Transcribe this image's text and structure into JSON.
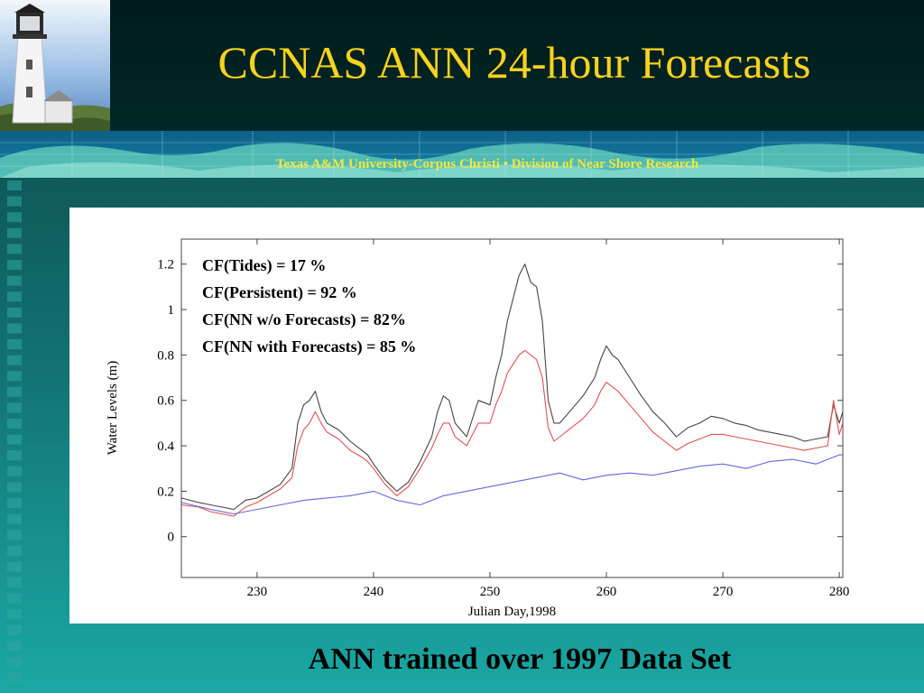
{
  "slide": {
    "title": "CCNAS ANN 24-hour Forecasts",
    "subtitle": "Texas A&M University-Corpus Christi • Division of Near Shore Research",
    "caption": "ANN trained over 1997 Data Set",
    "colors": {
      "title": "#f7d21f",
      "subtitle": "#f2e73a",
      "background_dark": "#0a3434",
      "background_teal": "#1aa7a3"
    }
  },
  "chart_data": {
    "type": "line",
    "title": "",
    "xlabel": "Julian Day,1998",
    "ylabel": "Water Levels (m)",
    "xlim": [
      223.5,
      280.3
    ],
    "ylim": [
      -0.18,
      1.31
    ],
    "xticks": [
      230,
      240,
      250,
      260,
      270,
      280
    ],
    "yticks": [
      0,
      0.2,
      0.4,
      0.6,
      0.8,
      1,
      1.2
    ],
    "grid": false,
    "annotations": [
      "CF(Tides) = 17 %",
      "CF(Persistent) = 92 %",
      "CF(NN w/o Forecasts) = 82%",
      "CF(NN with Forecasts) = 85 %"
    ],
    "series": [
      {
        "color": "#444444",
        "x": [
          223.5,
          225,
          226,
          227,
          228,
          229,
          230,
          231,
          232,
          233,
          233.5,
          234,
          234.5,
          235,
          235.5,
          236,
          237,
          238,
          239,
          239.5,
          240,
          241,
          242,
          243,
          244,
          245,
          245.5,
          246,
          246.5,
          247,
          248,
          249,
          250,
          250.5,
          251,
          251.5,
          252,
          252.5,
          253,
          253.5,
          254,
          254.5,
          255,
          255.5,
          256,
          257,
          258,
          258.5,
          259,
          259.5,
          260,
          260.5,
          261,
          262,
          263,
          264,
          265,
          266,
          267,
          268,
          269,
          270,
          271,
          272,
          273,
          274,
          275,
          276,
          277,
          278,
          279,
          279.5,
          280,
          280.3
        ],
        "y": [
          0.17,
          0.15,
          0.14,
          0.13,
          0.12,
          0.16,
          0.17,
          0.2,
          0.23,
          0.3,
          0.5,
          0.58,
          0.6,
          0.64,
          0.55,
          0.5,
          0.47,
          0.42,
          0.38,
          0.36,
          0.32,
          0.25,
          0.2,
          0.24,
          0.33,
          0.44,
          0.55,
          0.62,
          0.6,
          0.5,
          0.44,
          0.6,
          0.58,
          0.7,
          0.8,
          0.95,
          1.05,
          1.15,
          1.2,
          1.12,
          1.1,
          0.95,
          0.6,
          0.5,
          0.5,
          0.56,
          0.62,
          0.66,
          0.7,
          0.78,
          0.84,
          0.8,
          0.78,
          0.7,
          0.62,
          0.55,
          0.5,
          0.44,
          0.48,
          0.5,
          0.53,
          0.52,
          0.5,
          0.49,
          0.47,
          0.46,
          0.45,
          0.44,
          0.42,
          0.43,
          0.44,
          0.58,
          0.5,
          0.55
        ]
      },
      {
        "color": "#e05050",
        "x": [
          223.5,
          225,
          226,
          227,
          228,
          229,
          230,
          231,
          232,
          233,
          233.5,
          234,
          234.5,
          235,
          235.5,
          236,
          237,
          238,
          239,
          239.5,
          240,
          241,
          242,
          243,
          244,
          245,
          245.5,
          246,
          246.5,
          247,
          248,
          249,
          250,
          250.5,
          251,
          251.5,
          252,
          252.5,
          253,
          253.5,
          254,
          254.5,
          255,
          255.5,
          256,
          257,
          258,
          258.5,
          259,
          259.5,
          260,
          260.5,
          261,
          262,
          263,
          264,
          265,
          266,
          267,
          268,
          269,
          270,
          271,
          272,
          273,
          274,
          275,
          276,
          277,
          278,
          279,
          279.5,
          280,
          280.3
        ],
        "y": [
          0.14,
          0.13,
          0.11,
          0.1,
          0.09,
          0.13,
          0.15,
          0.18,
          0.21,
          0.26,
          0.4,
          0.47,
          0.5,
          0.55,
          0.5,
          0.46,
          0.43,
          0.38,
          0.35,
          0.33,
          0.3,
          0.23,
          0.18,
          0.22,
          0.3,
          0.39,
          0.45,
          0.5,
          0.5,
          0.44,
          0.4,
          0.5,
          0.5,
          0.58,
          0.64,
          0.72,
          0.76,
          0.8,
          0.82,
          0.8,
          0.78,
          0.7,
          0.48,
          0.42,
          0.44,
          0.48,
          0.52,
          0.55,
          0.58,
          0.64,
          0.68,
          0.66,
          0.64,
          0.58,
          0.52,
          0.46,
          0.42,
          0.38,
          0.41,
          0.43,
          0.45,
          0.45,
          0.44,
          0.43,
          0.42,
          0.41,
          0.4,
          0.39,
          0.38,
          0.39,
          0.4,
          0.6,
          0.45,
          0.5
        ]
      },
      {
        "color": "#6666dd",
        "x": [
          223.5,
          226,
          228,
          230,
          232,
          234,
          236,
          238,
          240,
          242,
          244,
          246,
          248,
          250,
          252,
          254,
          256,
          258,
          260,
          262,
          264,
          266,
          268,
          270,
          272,
          274,
          276,
          278,
          280,
          280.3
        ],
        "y": [
          0.15,
          0.12,
          0.1,
          0.12,
          0.14,
          0.16,
          0.17,
          0.18,
          0.2,
          0.16,
          0.14,
          0.18,
          0.2,
          0.22,
          0.24,
          0.26,
          0.28,
          0.25,
          0.27,
          0.28,
          0.27,
          0.29,
          0.31,
          0.32,
          0.3,
          0.33,
          0.34,
          0.32,
          0.36,
          0.36
        ]
      }
    ]
  }
}
